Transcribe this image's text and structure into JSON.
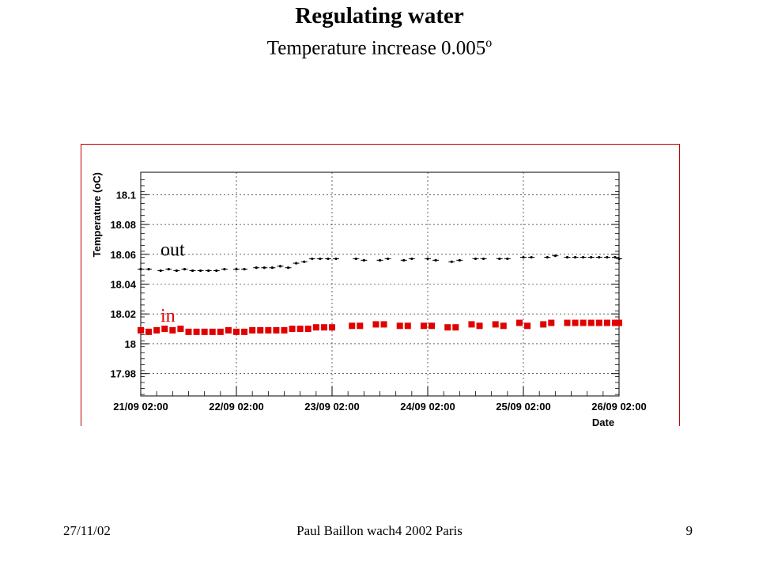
{
  "slide": {
    "title": "Regulating water",
    "subtitle": "Temperature increase 0.005",
    "subtitle_unit": "o"
  },
  "footer": {
    "date": "27/11/02",
    "center": "Paul Baillon   wach4 2002 Paris",
    "page": "9"
  },
  "colors": {
    "frame": "#c00000",
    "in_series": "#e00000",
    "out_series": "#000000",
    "grid": "#000000"
  },
  "chart_data": {
    "type": "scatter",
    "title": "",
    "xlabel": "Date",
    "ylabel": "Temperature (oC)",
    "xlim": [
      "2002-09-21 02:00",
      "2002-09-26 02:00"
    ],
    "ylim": [
      17.965,
      18.115
    ],
    "x_ticks": [
      "21/09 02:00",
      "22/09 02:00",
      "23/09 02:00",
      "24/09 02:00",
      "25/09 02:00",
      "26/09 02:00"
    ],
    "y_ticks": [
      "17.98",
      "18",
      "18.02",
      "18.04",
      "18.06",
      "18.08",
      "18.1"
    ],
    "grid": true,
    "series_labels": {
      "out": "out",
      "in": "in"
    },
    "series": [
      {
        "name": "out",
        "marker": "dot",
        "points": [
          [
            "2002-09-21 02:00",
            18.05
          ],
          [
            "2002-09-21 04:00",
            18.05
          ],
          [
            "2002-09-21 07:00",
            18.049
          ],
          [
            "2002-09-21 09:00",
            18.05
          ],
          [
            "2002-09-21 11:00",
            18.049
          ],
          [
            "2002-09-21 13:00",
            18.05
          ],
          [
            "2002-09-21 15:00",
            18.049
          ],
          [
            "2002-09-21 17:00",
            18.049
          ],
          [
            "2002-09-21 19:00",
            18.049
          ],
          [
            "2002-09-21 21:00",
            18.049
          ],
          [
            "2002-09-21 23:00",
            18.05
          ],
          [
            "2002-09-22 02:00",
            18.05
          ],
          [
            "2002-09-22 04:00",
            18.05
          ],
          [
            "2002-09-22 07:00",
            18.051
          ],
          [
            "2002-09-22 09:00",
            18.051
          ],
          [
            "2002-09-22 11:00",
            18.051
          ],
          [
            "2002-09-22 13:00",
            18.052
          ],
          [
            "2002-09-22 15:00",
            18.051
          ],
          [
            "2002-09-22 17:00",
            18.054
          ],
          [
            "2002-09-22 19:00",
            18.055
          ],
          [
            "2002-09-22 21:00",
            18.057
          ],
          [
            "2002-09-22 23:00",
            18.057
          ],
          [
            "2002-09-23 01:00",
            18.057
          ],
          [
            "2002-09-23 03:00",
            18.057
          ],
          [
            "2002-09-23 08:00",
            18.057
          ],
          [
            "2002-09-23 10:00",
            18.056
          ],
          [
            "2002-09-23 14:00",
            18.056
          ],
          [
            "2002-09-23 16:00",
            18.057
          ],
          [
            "2002-09-23 20:00",
            18.056
          ],
          [
            "2002-09-23 22:00",
            18.057
          ],
          [
            "2002-09-24 02:00",
            18.057
          ],
          [
            "2002-09-24 04:00",
            18.056
          ],
          [
            "2002-09-24 08:00",
            18.055
          ],
          [
            "2002-09-24 10:00",
            18.056
          ],
          [
            "2002-09-24 14:00",
            18.057
          ],
          [
            "2002-09-24 16:00",
            18.057
          ],
          [
            "2002-09-24 20:00",
            18.057
          ],
          [
            "2002-09-24 22:00",
            18.057
          ],
          [
            "2002-09-25 02:00",
            18.058
          ],
          [
            "2002-09-25 04:00",
            18.058
          ],
          [
            "2002-09-25 08:00",
            18.058
          ],
          [
            "2002-09-25 10:00",
            18.059
          ],
          [
            "2002-09-25 13:00",
            18.058
          ],
          [
            "2002-09-25 15:00",
            18.058
          ],
          [
            "2002-09-25 17:00",
            18.058
          ],
          [
            "2002-09-25 19:00",
            18.058
          ],
          [
            "2002-09-25 21:00",
            18.058
          ],
          [
            "2002-09-25 23:00",
            18.058
          ],
          [
            "2002-09-26 01:00",
            18.058
          ],
          [
            "2002-09-26 02:00",
            18.057
          ]
        ]
      },
      {
        "name": "in",
        "marker": "square",
        "points": [
          [
            "2002-09-21 02:00",
            18.009
          ],
          [
            "2002-09-21 04:00",
            18.008
          ],
          [
            "2002-09-21 06:00",
            18.009
          ],
          [
            "2002-09-21 08:00",
            18.01
          ],
          [
            "2002-09-21 10:00",
            18.009
          ],
          [
            "2002-09-21 12:00",
            18.01
          ],
          [
            "2002-09-21 14:00",
            18.008
          ],
          [
            "2002-09-21 16:00",
            18.008
          ],
          [
            "2002-09-21 18:00",
            18.008
          ],
          [
            "2002-09-21 20:00",
            18.008
          ],
          [
            "2002-09-21 22:00",
            18.008
          ],
          [
            "2002-09-22 00:00",
            18.009
          ],
          [
            "2002-09-22 02:00",
            18.008
          ],
          [
            "2002-09-22 04:00",
            18.008
          ],
          [
            "2002-09-22 06:00",
            18.009
          ],
          [
            "2002-09-22 08:00",
            18.009
          ],
          [
            "2002-09-22 10:00",
            18.009
          ],
          [
            "2002-09-22 12:00",
            18.009
          ],
          [
            "2002-09-22 14:00",
            18.009
          ],
          [
            "2002-09-22 16:00",
            18.01
          ],
          [
            "2002-09-22 18:00",
            18.01
          ],
          [
            "2002-09-22 20:00",
            18.01
          ],
          [
            "2002-09-22 22:00",
            18.011
          ],
          [
            "2002-09-23 00:00",
            18.011
          ],
          [
            "2002-09-23 02:00",
            18.011
          ],
          [
            "2002-09-23 07:00",
            18.012
          ],
          [
            "2002-09-23 09:00",
            18.012
          ],
          [
            "2002-09-23 13:00",
            18.013
          ],
          [
            "2002-09-23 15:00",
            18.013
          ],
          [
            "2002-09-23 19:00",
            18.012
          ],
          [
            "2002-09-23 21:00",
            18.012
          ],
          [
            "2002-09-24 01:00",
            18.012
          ],
          [
            "2002-09-24 03:00",
            18.012
          ],
          [
            "2002-09-24 07:00",
            18.011
          ],
          [
            "2002-09-24 09:00",
            18.011
          ],
          [
            "2002-09-24 13:00",
            18.013
          ],
          [
            "2002-09-24 15:00",
            18.012
          ],
          [
            "2002-09-24 19:00",
            18.013
          ],
          [
            "2002-09-24 21:00",
            18.012
          ],
          [
            "2002-09-25 01:00",
            18.014
          ],
          [
            "2002-09-25 03:00",
            18.012
          ],
          [
            "2002-09-25 07:00",
            18.013
          ],
          [
            "2002-09-25 09:00",
            18.014
          ],
          [
            "2002-09-25 13:00",
            18.014
          ],
          [
            "2002-09-25 15:00",
            18.014
          ],
          [
            "2002-09-25 17:00",
            18.014
          ],
          [
            "2002-09-25 19:00",
            18.014
          ],
          [
            "2002-09-25 21:00",
            18.014
          ],
          [
            "2002-09-25 23:00",
            18.014
          ],
          [
            "2002-09-26 01:00",
            18.014
          ],
          [
            "2002-09-26 02:00",
            18.014
          ]
        ]
      }
    ]
  }
}
